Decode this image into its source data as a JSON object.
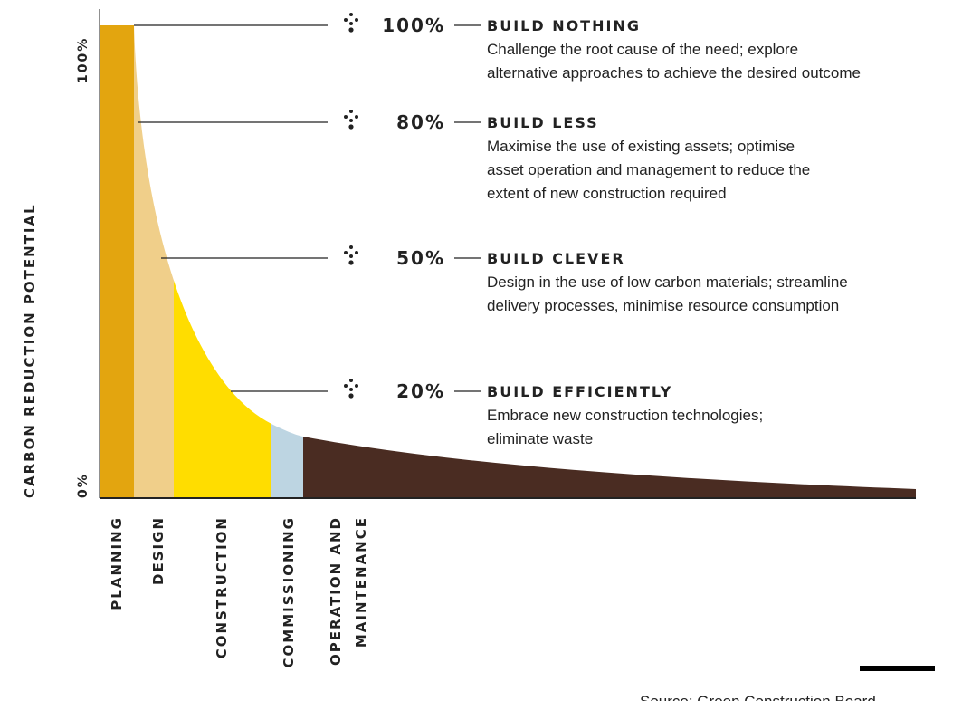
{
  "y_axis": {
    "label": "CARBON REDUCTION POTENTIAL",
    "top": "100%",
    "bottom": "0%"
  },
  "stages": [
    {
      "lines": [
        "PLANNING"
      ]
    },
    {
      "lines": [
        "DESIGN"
      ]
    },
    {
      "lines": [
        "CONSTRUCTION"
      ]
    },
    {
      "lines": [
        "COMMISSIONING"
      ]
    },
    {
      "lines": [
        "OPERATION AND",
        "MAINTENANCE"
      ]
    }
  ],
  "levels": [
    {
      "percent": "100%",
      "title": "BUILD NOTHING",
      "description": [
        "Challenge the root cause of the need; explore",
        "alternative approaches to achieve the desired outcome"
      ]
    },
    {
      "percent": "80%",
      "title": "BUILD LESS",
      "description": [
        "Maximise the use of existing assets; optimise",
        "asset operation and management to reduce the",
        "extent of new construction required"
      ]
    },
    {
      "percent": "50%",
      "title": "BUILD CLEVER",
      "description": [
        "Design in the use of low carbon materials; streamline",
        "delivery processes, minimise resource consumption"
      ]
    },
    {
      "percent": "20%",
      "title": "BUILD EFFICIENTLY",
      "description": [
        "Embrace new construction technologies;",
        "eliminate waste"
      ]
    }
  ],
  "source": "Source: Green Construction Board"
}
